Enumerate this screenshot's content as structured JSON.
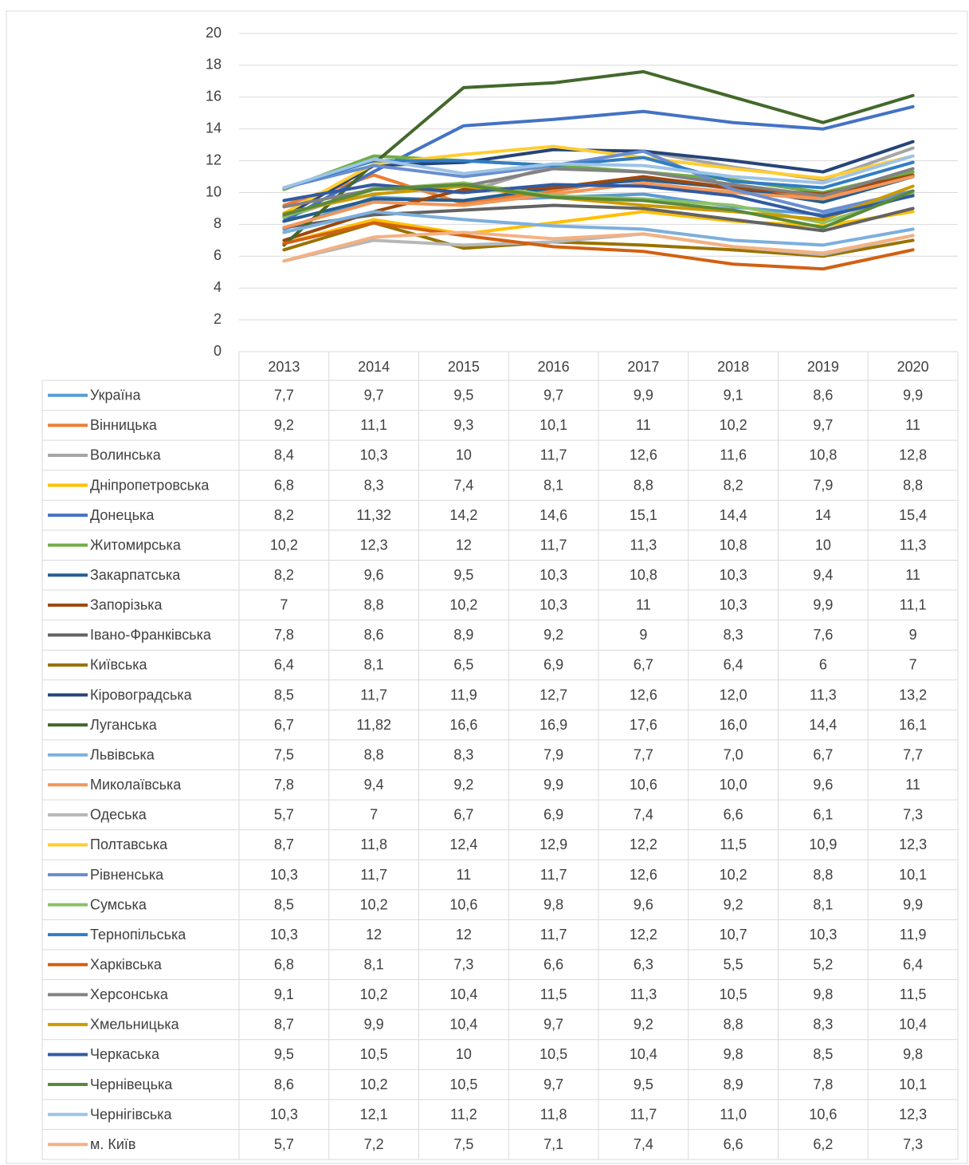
{
  "chart_data": {
    "type": "line",
    "categories": [
      "2013",
      "2014",
      "2015",
      "2016",
      "2017",
      "2018",
      "2019",
      "2020"
    ],
    "ylim": [
      0,
      20
    ],
    "yticks": [
      0,
      2,
      4,
      6,
      8,
      10,
      12,
      14,
      16,
      18,
      20
    ],
    "grid": true,
    "series": [
      {
        "name": "Україна",
        "color": "#5b9bd5",
        "values": [
          7.7,
          9.7,
          9.5,
          9.7,
          9.9,
          9.1,
          8.6,
          9.9
        ],
        "value_labels": [
          "7,7",
          "9,7",
          "9,5",
          "9,7",
          "9,9",
          "9,1",
          "8,6",
          "9,9"
        ]
      },
      {
        "name": "Вінницька",
        "color": "#ed7d31",
        "values": [
          9.2,
          11.1,
          9.3,
          10.1,
          11,
          10.2,
          9.7,
          11
        ],
        "value_labels": [
          "9,2",
          "11,1",
          "9,3",
          "10,1",
          "11",
          "10,2",
          "9,7",
          "11"
        ]
      },
      {
        "name": "Волинська",
        "color": "#a5a5a5",
        "values": [
          8.4,
          10.3,
          10,
          11.7,
          12.6,
          11.6,
          10.8,
          12.8
        ],
        "value_labels": [
          "8,4",
          "10,3",
          "10",
          "11,7",
          "12,6",
          "11,6",
          "10,8",
          "12,8"
        ]
      },
      {
        "name": "Дніпропетровська",
        "color": "#ffc000",
        "values": [
          6.8,
          8.3,
          7.4,
          8.1,
          8.8,
          8.2,
          7.9,
          8.8
        ],
        "value_labels": [
          "6,8",
          "8,3",
          "7,4",
          "8,1",
          "8,8",
          "8,2",
          "7,9",
          "8,8"
        ]
      },
      {
        "name": "Донецька",
        "color": "#4472c4",
        "values": [
          8.2,
          11.32,
          14.2,
          14.6,
          15.1,
          14.4,
          14,
          15.4
        ],
        "value_labels": [
          "8,2",
          "11,32",
          "14,2",
          "14,6",
          "15,1",
          "14,4",
          "14",
          "15,4"
        ]
      },
      {
        "name": "Житомирська",
        "color": "#70ad47",
        "values": [
          10.2,
          12.3,
          12,
          11.7,
          11.3,
          10.8,
          10,
          11.3
        ],
        "value_labels": [
          "10,2",
          "12,3",
          "12",
          "11,7",
          "11,3",
          "10,8",
          "10",
          "11,3"
        ]
      },
      {
        "name": "Закарпатська",
        "color": "#255e91",
        "values": [
          8.2,
          9.6,
          9.5,
          10.3,
          10.8,
          10.3,
          9.4,
          11
        ],
        "value_labels": [
          "8,2",
          "9,6",
          "9,5",
          "10,3",
          "10,8",
          "10,3",
          "9,4",
          "11"
        ]
      },
      {
        "name": "Запорізька",
        "color": "#9e480e",
        "values": [
          7,
          8.8,
          10.2,
          10.3,
          11,
          10.3,
          9.9,
          11.1
        ],
        "value_labels": [
          "7",
          "8,8",
          "10,2",
          "10,3",
          "11",
          "10,3",
          "9,9",
          "11,1"
        ]
      },
      {
        "name": "Івано-Франківська",
        "color": "#636363",
        "values": [
          7.8,
          8.6,
          8.9,
          9.2,
          9,
          8.3,
          7.6,
          9
        ],
        "value_labels": [
          "7,8",
          "8,6",
          "8,9",
          "9,2",
          "9",
          "8,3",
          "7,6",
          "9"
        ]
      },
      {
        "name": "Київська",
        "color": "#997300",
        "values": [
          6.4,
          8.1,
          6.5,
          6.9,
          6.7,
          6.4,
          6,
          7
        ],
        "value_labels": [
          "6,4",
          "8,1",
          "6,5",
          "6,9",
          "6,7",
          "6,4",
          "6",
          "7"
        ]
      },
      {
        "name": "Кіровоградська",
        "color": "#264478",
        "values": [
          8.5,
          11.7,
          11.9,
          12.7,
          12.6,
          12,
          11.3,
          13.2
        ],
        "value_labels": [
          "8,5",
          "11,7",
          "11,9",
          "12,7",
          "12,6",
          "12,0",
          "11,3",
          "13,2"
        ]
      },
      {
        "name": "Луганська",
        "color": "#43682b",
        "values": [
          6.7,
          11.82,
          16.6,
          16.9,
          17.6,
          16,
          14.4,
          16.1
        ],
        "value_labels": [
          "6,7",
          "11,82",
          "16,6",
          "16,9",
          "17,6",
          "16,0",
          "14,4",
          "16,1"
        ]
      },
      {
        "name": "Львівська",
        "color": "#7cafdd",
        "values": [
          7.5,
          8.8,
          8.3,
          7.9,
          7.7,
          7,
          6.7,
          7.7
        ],
        "value_labels": [
          "7,5",
          "8,8",
          "8,3",
          "7,9",
          "7,7",
          "7,0",
          "6,7",
          "7,7"
        ]
      },
      {
        "name": "Миколаївська",
        "color": "#f1975a",
        "values": [
          7.8,
          9.4,
          9.2,
          9.9,
          10.6,
          10,
          9.6,
          11
        ],
        "value_labels": [
          "7,8",
          "9,4",
          "9,2",
          "9,9",
          "10,6",
          "10,0",
          "9,6",
          "11"
        ]
      },
      {
        "name": "Одеська",
        "color": "#b7b7b7",
        "values": [
          5.7,
          7,
          6.7,
          6.9,
          7.4,
          6.6,
          6.1,
          7.3
        ],
        "value_labels": [
          "5,7",
          "7",
          "6,7",
          "6,9",
          "7,4",
          "6,6",
          "6,1",
          "7,3"
        ]
      },
      {
        "name": "Полтавська",
        "color": "#ffcd33",
        "values": [
          8.7,
          11.8,
          12.4,
          12.9,
          12.2,
          11.5,
          10.9,
          12.3
        ],
        "value_labels": [
          "8,7",
          "11,8",
          "12,4",
          "12,9",
          "12,2",
          "11,5",
          "10,9",
          "12,3"
        ]
      },
      {
        "name": "Рівненська",
        "color": "#698ed0",
        "values": [
          10.3,
          11.7,
          11,
          11.7,
          12.6,
          10.2,
          8.8,
          10.1
        ],
        "value_labels": [
          "10,3",
          "11,7",
          "11",
          "11,7",
          "12,6",
          "10,2",
          "8,8",
          "10,1"
        ]
      },
      {
        "name": "Сумська",
        "color": "#8cc168",
        "values": [
          8.5,
          10.2,
          10.6,
          9.8,
          9.6,
          9.2,
          8.1,
          9.9
        ],
        "value_labels": [
          "8,5",
          "10,2",
          "10,6",
          "9,8",
          "9,6",
          "9,2",
          "8,1",
          "9,9"
        ]
      },
      {
        "name": "Тернопільська",
        "color": "#327dc2",
        "values": [
          10.3,
          12,
          12,
          11.7,
          12.2,
          10.7,
          10.3,
          11.9
        ],
        "value_labels": [
          "10,3",
          "12",
          "12",
          "11,7",
          "12,2",
          "10,7",
          "10,3",
          "11,9"
        ]
      },
      {
        "name": "Харківська",
        "color": "#d26012",
        "values": [
          6.8,
          8.1,
          7.3,
          6.6,
          6.3,
          5.5,
          5.2,
          6.4
        ],
        "value_labels": [
          "6,8",
          "8,1",
          "7,3",
          "6,6",
          "6,3",
          "5,5",
          "5,2",
          "6,4"
        ]
      },
      {
        "name": "Херсонська",
        "color": "#828282",
        "values": [
          9.1,
          10.2,
          10.4,
          11.5,
          11.3,
          10.5,
          9.8,
          11.5
        ],
        "value_labels": [
          "9,1",
          "10,2",
          "10,4",
          "11,5",
          "11,3",
          "10,5",
          "9,8",
          "11,5"
        ]
      },
      {
        "name": "Хмельницька",
        "color": "#cc9a00",
        "values": [
          8.7,
          9.9,
          10.4,
          9.7,
          9.2,
          8.8,
          8.3,
          10.4
        ],
        "value_labels": [
          "8,7",
          "9,9",
          "10,4",
          "9,7",
          "9,2",
          "8,8",
          "8,3",
          "10,4"
        ]
      },
      {
        "name": "Черкаська",
        "color": "#335aa1",
        "values": [
          9.5,
          10.5,
          10,
          10.5,
          10.4,
          9.8,
          8.5,
          9.8
        ],
        "value_labels": [
          "9,5",
          "10,5",
          "10",
          "10,5",
          "10,4",
          "9,8",
          "8,5",
          "9,8"
        ]
      },
      {
        "name": "Чернівецька",
        "color": "#5a8a39",
        "values": [
          8.6,
          10.2,
          10.5,
          9.7,
          9.5,
          8.9,
          7.8,
          10.1
        ],
        "value_labels": [
          "8,6",
          "10,2",
          "10,5",
          "9,7",
          "9,5",
          "8,9",
          "7,8",
          "10,1"
        ]
      },
      {
        "name": "Чернігівська",
        "color": "#9dc3e6",
        "values": [
          10.3,
          12.1,
          11.2,
          11.8,
          11.7,
          11,
          10.6,
          12.3
        ],
        "value_labels": [
          "10,3",
          "12,1",
          "11,2",
          "11,8",
          "11,7",
          "11,0",
          "10,6",
          "12,3"
        ]
      },
      {
        "name": "м. Київ",
        "color": "#f4b183",
        "values": [
          5.7,
          7.2,
          7.5,
          7.1,
          7.4,
          6.6,
          6.2,
          7.3
        ],
        "value_labels": [
          "5,7",
          "7,2",
          "7,5",
          "7,1",
          "7,4",
          "6,6",
          "6,2",
          "7,3"
        ]
      }
    ]
  }
}
